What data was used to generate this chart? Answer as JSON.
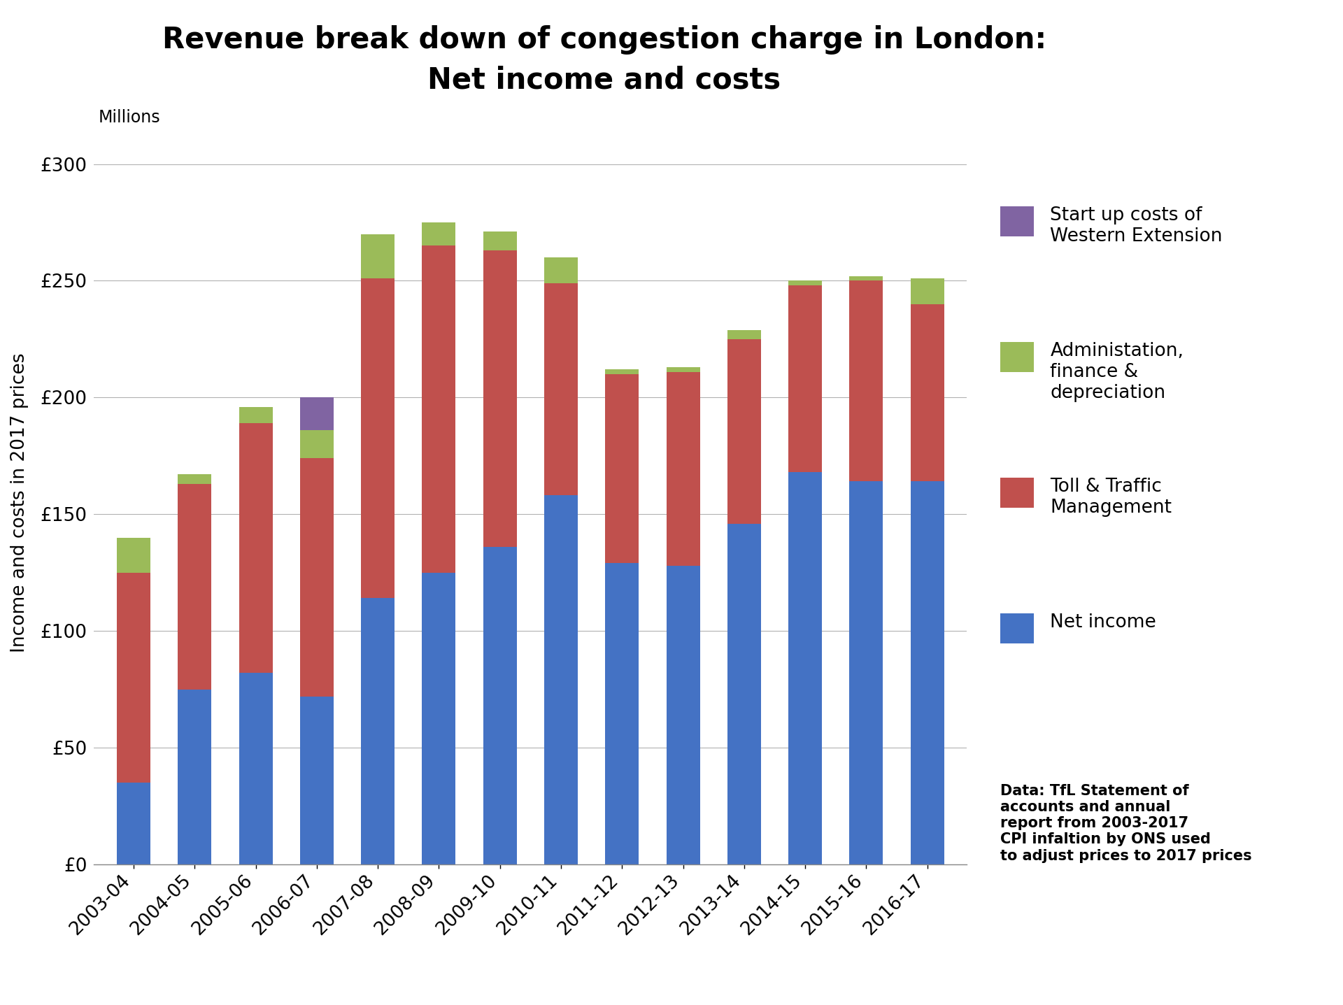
{
  "categories": [
    "2003-04",
    "2004-05",
    "2005-06",
    "2006-07",
    "2007-08",
    "2008-09",
    "2009-10",
    "2010-11",
    "2011-12",
    "2012-13",
    "2013-14",
    "2014-15",
    "2015-16",
    "2016-17"
  ],
  "net_income": [
    35,
    75,
    82,
    72,
    114,
    125,
    136,
    158,
    129,
    128,
    146,
    168,
    164,
    164
  ],
  "toll_traffic": [
    90,
    88,
    107,
    102,
    137,
    140,
    127,
    91,
    81,
    83,
    79,
    80,
    86,
    76
  ],
  "admin_finance": [
    15,
    4,
    7,
    12,
    19,
    10,
    8,
    11,
    2,
    2,
    4,
    2,
    2,
    11
  ],
  "startup_costs": [
    0,
    0,
    0,
    14,
    0,
    0,
    0,
    0,
    0,
    0,
    0,
    0,
    0,
    0
  ],
  "color_net_income": "#4472C4",
  "color_toll": "#C0504D",
  "color_admin": "#9BBB59",
  "color_startup": "#8064A2",
  "title_line1": "Revenue break down of congestion charge in London:",
  "title_line2": "Net income and costs",
  "ylabel": "Income and costs in 2017 prices",
  "ylabel2": "Millions",
  "ylim": [
    0,
    310
  ],
  "yticks": [
    0,
    50,
    100,
    150,
    200,
    250,
    300
  ],
  "ytick_labels": [
    "£0",
    "£50",
    "£100",
    "£150",
    "£200",
    "£250",
    "£300"
  ],
  "legend_labels": [
    "Start up costs of\nWestern Extension",
    "Administation,\nfinance &\ndepreciation",
    "Toll & Traffic\nManagement",
    "Net income"
  ],
  "legend_colors": [
    "#8064A2",
    "#9BBB59",
    "#C0504D",
    "#4472C4"
  ],
  "footnote": "Data: TfL Statement of\naccounts and annual\nreport from 2003-2017\nCPI infaltion by ONS used\nto adjust prices to 2017 prices",
  "bar_width": 0.55,
  "title_fontsize": 30,
  "tick_fontsize": 19,
  "ylabel_fontsize": 19,
  "legend_fontsize": 19,
  "footnote_fontsize": 15,
  "millions_fontsize": 17
}
